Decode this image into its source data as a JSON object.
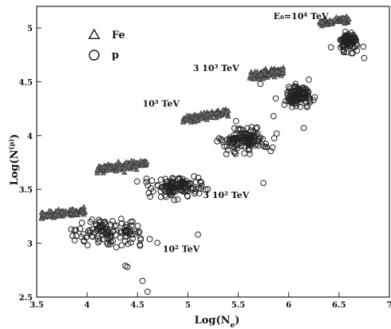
{
  "chart_data": {
    "type": "scatter",
    "title": "",
    "xlabel": "Log(N",
    "xlabel_sub": "e",
    "xlabel_close": ")",
    "ylabel": "Log(N",
    "ylabel_sup": "(μ)",
    "ylabel_close": ")",
    "xlim": [
      3.5,
      7
    ],
    "ylim": [
      2.5,
      5.2
    ],
    "x_ticks": [
      3.5,
      4,
      4.5,
      5,
      5.5,
      6,
      6.5,
      7
    ],
    "x_tick_labels": [
      "3.5",
      "4",
      "4.5",
      "5",
      "5.5",
      "6",
      "6.5",
      "7"
    ],
    "y_ticks": [
      2.5,
      3,
      3.5,
      4,
      4.5,
      5
    ],
    "y_tick_labels": [
      "2.5",
      "3",
      "3.5",
      "4",
      "4.5",
      "5"
    ],
    "grid": false,
    "legend": [
      {
        "label": "Fe",
        "marker": "triangle"
      },
      {
        "label": "p",
        "marker": "circle"
      }
    ],
    "annotations": [
      {
        "text": "E₀=10⁴ TeV",
        "x": 5.85,
        "y": 5.08
      },
      {
        "text": "3 10³ TeV",
        "x": 5.05,
        "y": 4.6
      },
      {
        "text": "10³ TeV",
        "x": 4.55,
        "y": 4.27
      },
      {
        "text": "3 10² TeV",
        "x": 5.15,
        "y": 3.42
      },
      {
        "text": "10² TeV",
        "x": 4.75,
        "y": 2.92
      }
    ],
    "series": [
      {
        "name": "Fe",
        "marker": "triangle",
        "clusters": [
          {
            "energy": "10² TeV",
            "x_range": [
              3.55,
              3.98
            ],
            "y_center": 3.275,
            "y_spread": 0.03,
            "slope": 0.1,
            "n": 110
          },
          {
            "energy": "3 10² TeV",
            "x_range": [
              4.1,
              4.6
            ],
            "y_center": 3.715,
            "y_spread": 0.035,
            "slope": 0.12,
            "n": 110
          },
          {
            "energy": "10³ TeV",
            "x_range": [
              4.95,
              5.4
            ],
            "y_center": 4.18,
            "y_spread": 0.035,
            "slope": 0.15,
            "n": 110
          },
          {
            "energy": "3 10³ TeV",
            "x_range": [
              5.6,
              5.95
            ],
            "y_center": 4.57,
            "y_spread": 0.035,
            "slope": 0.12,
            "n": 100
          },
          {
            "energy": "10⁴ TeV",
            "x_range": [
              6.3,
              6.6
            ],
            "y_center": 5.06,
            "y_spread": 0.025,
            "slope": 0.1,
            "n": 80
          }
        ]
      },
      {
        "name": "p",
        "marker": "circle",
        "clusters": [
          {
            "energy": "10² TeV",
            "x_center": 4.25,
            "y_center": 3.1,
            "x_spread": 0.3,
            "y_spread": 0.11,
            "n": 120
          },
          {
            "energy": "3 10² TeV",
            "x_center": 4.9,
            "y_center": 3.52,
            "x_spread": 0.22,
            "y_spread": 0.09,
            "n": 120
          },
          {
            "energy": "10³ TeV",
            "x_center": 5.55,
            "y_center": 3.97,
            "x_spread": 0.2,
            "y_spread": 0.09,
            "n": 130
          },
          {
            "energy": "3 10³ TeV",
            "x_center": 6.1,
            "y_center": 4.37,
            "x_spread": 0.13,
            "y_spread": 0.08,
            "n": 110
          },
          {
            "energy": "10⁴ TeV",
            "x_center": 6.6,
            "y_center": 4.87,
            "x_spread": 0.08,
            "y_spread": 0.08,
            "n": 90
          }
        ]
      }
    ],
    "p_outliers": [
      {
        "x": 4.6,
        "y": 2.55
      },
      {
        "x": 4.55,
        "y": 2.65
      },
      {
        "x": 4.4,
        "y": 2.78
      },
      {
        "x": 4.38,
        "y": 2.79
      },
      {
        "x": 5.1,
        "y": 3.08
      },
      {
        "x": 5.75,
        "y": 3.56
      },
      {
        "x": 6.15,
        "y": 4.07
      },
      {
        "x": 5.85,
        "y": 4.18
      },
      {
        "x": 6.2,
        "y": 4.52
      },
      {
        "x": 5.72,
        "y": 4.48
      },
      {
        "x": 6.42,
        "y": 4.82
      },
      {
        "x": 6.75,
        "y": 4.72
      }
    ]
  }
}
